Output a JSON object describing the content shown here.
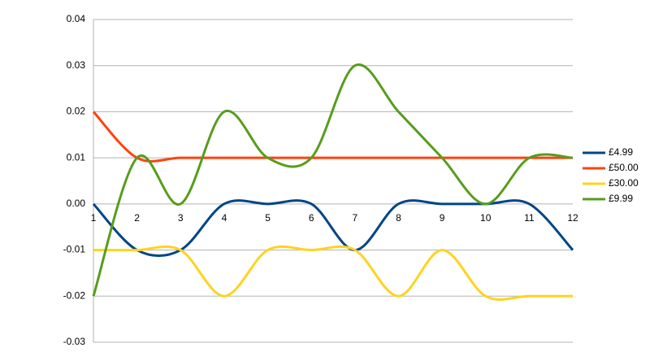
{
  "chart_data": {
    "type": "line",
    "smooth": true,
    "legend": "right",
    "grid": true,
    "x": [
      1,
      2,
      3,
      4,
      5,
      6,
      7,
      8,
      9,
      10,
      11,
      12
    ],
    "xlim": [
      1,
      12
    ],
    "xticks": [
      1,
      2,
      3,
      4,
      5,
      6,
      7,
      8,
      9,
      10,
      11,
      12
    ],
    "ylim": [
      -0.03,
      0.04
    ],
    "yticks": [
      0.04,
      0.03,
      0.02,
      0.01,
      {
        "value": 0,
        "label": "0.00"
      },
      -0.01,
      -0.02,
      -0.03
    ],
    "series": [
      {
        "name": "£4.99",
        "color": "#004586",
        "values": [
          0,
          -0.01,
          -0.01,
          0,
          0,
          0,
          -0.01,
          0,
          0,
          0,
          0,
          -0.01
        ]
      },
      {
        "name": "£50.00",
        "color": "#ff420e",
        "values": [
          0.02,
          0.01,
          0.01,
          0.01,
          0.01,
          0.01,
          0.01,
          0.01,
          0.01,
          0.01,
          0.01,
          0.01
        ]
      },
      {
        "name": "£30.00",
        "color": "#ffd320",
        "values": [
          -0.01,
          -0.01,
          -0.01,
          -0.02,
          -0.01,
          -0.01,
          -0.01,
          -0.02,
          -0.01,
          -0.02,
          -0.02,
          -0.02
        ]
      },
      {
        "name": "£9.99",
        "color": "#579d1c",
        "values": [
          -0.02,
          0.01,
          0,
          0.02,
          0.01,
          0.01,
          0.03,
          0.02,
          0.01,
          0,
          0.01,
          0.01
        ]
      }
    ]
  }
}
